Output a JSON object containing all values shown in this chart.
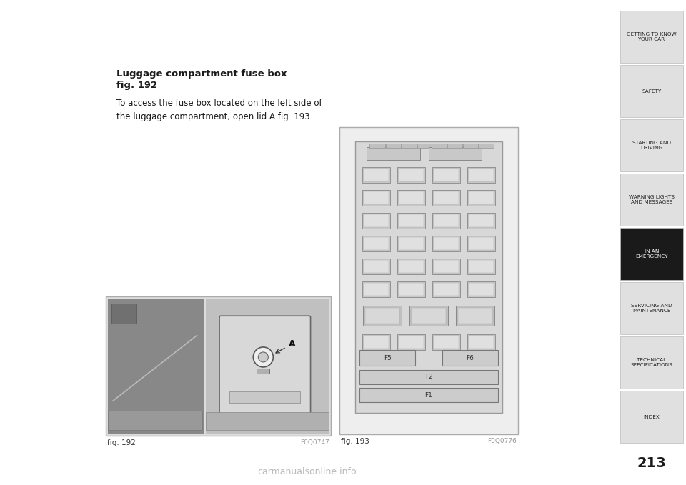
{
  "bg_color": "#ffffff",
  "page_number": "213",
  "title_bold": "Luggage compartment fuse box",
  "title_bold2": "fig. 192",
  "body_text": "To access the fuse box located on the left side of\nthe luggage compartment, open lid A fig. 193.",
  "fig192_label": "fig. 192",
  "fig192_code": "F0Q0747",
  "fig193_label": "fig. 193",
  "fig193_code": "F0Q0776",
  "sidebar_items": [
    {
      "text": "GETTING TO KNOW\nYOUR CAR",
      "active": false
    },
    {
      "text": "SAFETY",
      "active": false
    },
    {
      "text": "STARTING AND\nDRIVING",
      "active": false
    },
    {
      "text": "WARNING LIGHTS\nAND MESSAGES",
      "active": false
    },
    {
      "text": "IN AN\nEMERGENCY",
      "active": true
    },
    {
      "text": "SERVICING AND\nMAINTENANCE",
      "active": false
    },
    {
      "text": "TECHNICAL\nSPECIFICATIONS",
      "active": false
    },
    {
      "text": "INDEX",
      "active": false
    }
  ],
  "sidebar_bg_inactive": "#e0e0e0",
  "sidebar_bg_active": "#1a1a1a",
  "sidebar_text_inactive": "#222222",
  "sidebar_text_active": "#ffffff",
  "sidebar_border": "#bbbbbb",
  "fig_border_color": "#aaaaaa",
  "label_color": "#333333",
  "code_color": "#999999",
  "watermark": "carmanualsonline.info",
  "watermark_color": "#bbbbbb"
}
